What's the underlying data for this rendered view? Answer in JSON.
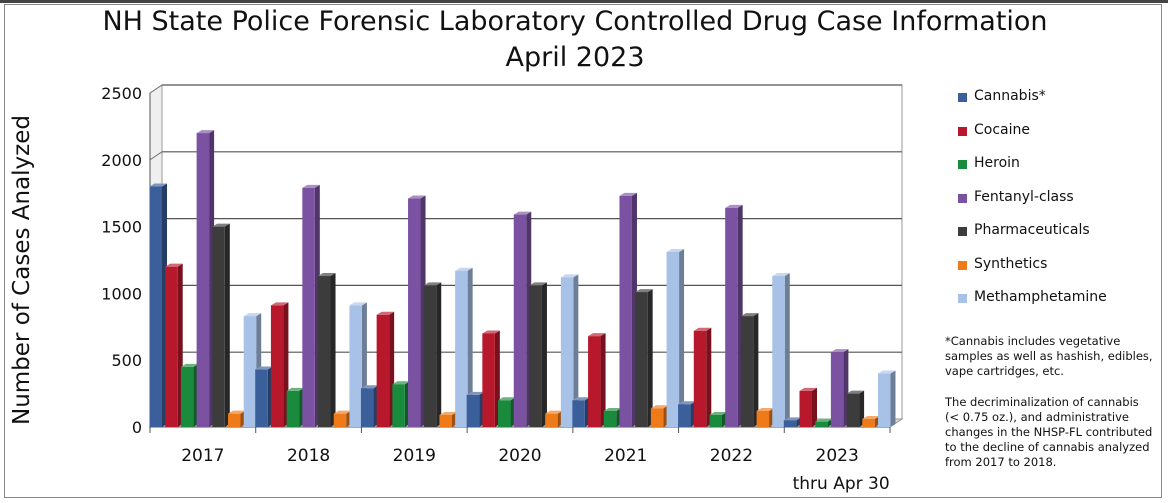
{
  "chart_data": {
    "type": "bar",
    "title": "NH State Police Forensic Laboratory Controlled Drug Case Information",
    "subtitle": "April 2023",
    "ylabel": "Number of Cases Analyzed",
    "xlabel": "",
    "ylim": [
      0,
      2500
    ],
    "yticks": [
      0,
      500,
      1000,
      1500,
      2000,
      2500
    ],
    "grid": true,
    "legend_position": "right",
    "categories": [
      "2017",
      "2018",
      "2019",
      "2020",
      "2021",
      "2022",
      "2023"
    ],
    "category_note": "thru Apr 30",
    "series": [
      {
        "name": "Cannabis*",
        "color": "#3b5f9a",
        "values": [
          1800,
          430,
          290,
          240,
          200,
          170,
          50
        ]
      },
      {
        "name": "Cocaine",
        "color": "#b8182c",
        "values": [
          1200,
          910,
          840,
          700,
          680,
          720,
          270
        ]
      },
      {
        "name": "Heroin",
        "color": "#1a8a3c",
        "values": [
          450,
          270,
          320,
          200,
          120,
          90,
          40
        ]
      },
      {
        "name": "Fentanyl-class",
        "color": "#7b52a2",
        "values": [
          2200,
          1790,
          1710,
          1590,
          1730,
          1640,
          560
        ]
      },
      {
        "name": "Pharmaceuticals",
        "color": "#3c3c3c",
        "values": [
          1500,
          1130,
          1060,
          1060,
          1010,
          830,
          250
        ]
      },
      {
        "name": "Synthetics",
        "color": "#ee7a1a",
        "values": [
          100,
          100,
          90,
          100,
          140,
          120,
          60
        ]
      },
      {
        "name": "Methamphetamine",
        "color": "#a7c2e6",
        "values": [
          830,
          910,
          1170,
          1120,
          1310,
          1130,
          400
        ]
      }
    ]
  },
  "notes": {
    "note1": "*Cannabis includes vegetative samples as well as hashish, edibles, vape cartridges, etc.",
    "note2": "The decriminalization of cannabis (< 0.75 oz.), and administrative changes in the NHSP-FL contributed to the decline of cannabis analyzed from 2017 to 2018."
  }
}
